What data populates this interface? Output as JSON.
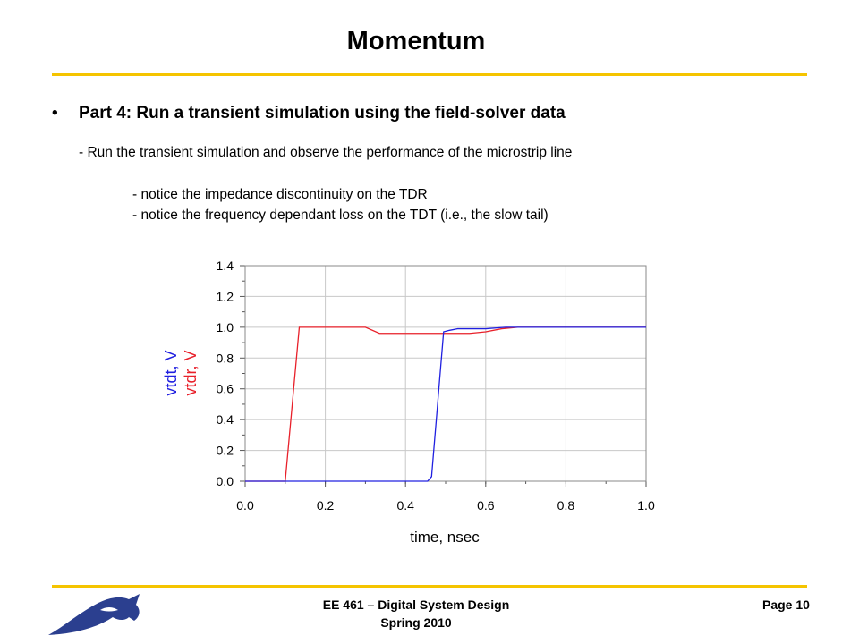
{
  "slide": {
    "title": "Momentum",
    "bullet": "Part 4: Run a transient simulation using the field-solver data",
    "bullet_marker": "•",
    "sub_item": "- Run the transient simulation and observe the performance of the microstrip line",
    "notes": [
      "- notice the impedance discontinuity on the TDR",
      "- notice the frequency dependant loss on the TDT (i.e., the slow tail)"
    ],
    "accent_color": "#f5c400"
  },
  "footer": {
    "course": "EE 461 – Digital System Design",
    "term": "Spring 2010",
    "page": "Page 10",
    "logo_icon": "cougar-logo"
  },
  "chart_data": {
    "type": "line",
    "xlabel": "time, nsec",
    "ylabel_series": [
      "vtdt, V",
      "vtdr, V"
    ],
    "xlim": [
      0.0,
      1.0
    ],
    "ylim": [
      0.0,
      1.4
    ],
    "xticks": [
      "0.0",
      "0.2",
      "0.4",
      "0.6",
      "0.8",
      "1.0"
    ],
    "yticks": [
      "0.0",
      "0.2",
      "0.4",
      "0.6",
      "0.8",
      "1.0",
      "1.2",
      "1.4"
    ],
    "grid": true,
    "series": [
      {
        "name": "vtdr, V",
        "color": "#e8202a",
        "points": [
          [
            0.0,
            0.0
          ],
          [
            0.1,
            0.0
          ],
          [
            0.135,
            1.0
          ],
          [
            0.3,
            1.0
          ],
          [
            0.335,
            0.96
          ],
          [
            0.56,
            0.96
          ],
          [
            0.6,
            0.97
          ],
          [
            0.64,
            0.99
          ],
          [
            0.68,
            1.0
          ],
          [
            1.0,
            1.0
          ]
        ]
      },
      {
        "name": "vtdt, V",
        "color": "#2020e0",
        "points": [
          [
            0.0,
            0.0
          ],
          [
            0.455,
            0.0
          ],
          [
            0.465,
            0.03
          ],
          [
            0.495,
            0.97
          ],
          [
            0.51,
            0.98
          ],
          [
            0.53,
            0.99
          ],
          [
            0.6,
            0.99
          ],
          [
            0.65,
            1.0
          ],
          [
            1.0,
            1.0
          ]
        ]
      }
    ]
  }
}
